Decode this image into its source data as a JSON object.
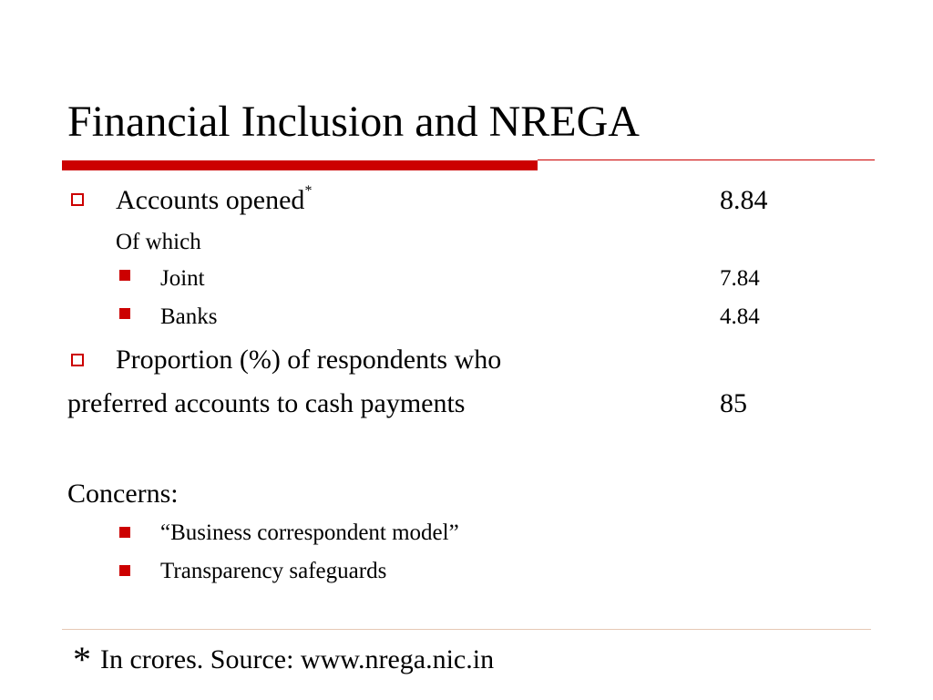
{
  "slide": {
    "title": "Financial Inclusion and NREGA",
    "accent_color": "#cc0000"
  },
  "items": {
    "accounts_opened": {
      "label": "Accounts opened",
      "mark": "*",
      "value": "8.84"
    },
    "of_which": "Of which",
    "joint": {
      "label": "Joint",
      "value": "7.84"
    },
    "banks": {
      "label": "Banks",
      "value": "4.84"
    },
    "proportion": {
      "line1": "Proportion (%) of respondents who",
      "line2": "preferred accounts to cash payments",
      "value": "85"
    },
    "concerns": {
      "heading": "Concerns:",
      "list": [
        "“Business correspondent model”",
        "Transparency safeguards"
      ]
    }
  },
  "footnote": {
    "star": "*",
    "text": "In crores. Source: www.nrega.nic.in"
  }
}
